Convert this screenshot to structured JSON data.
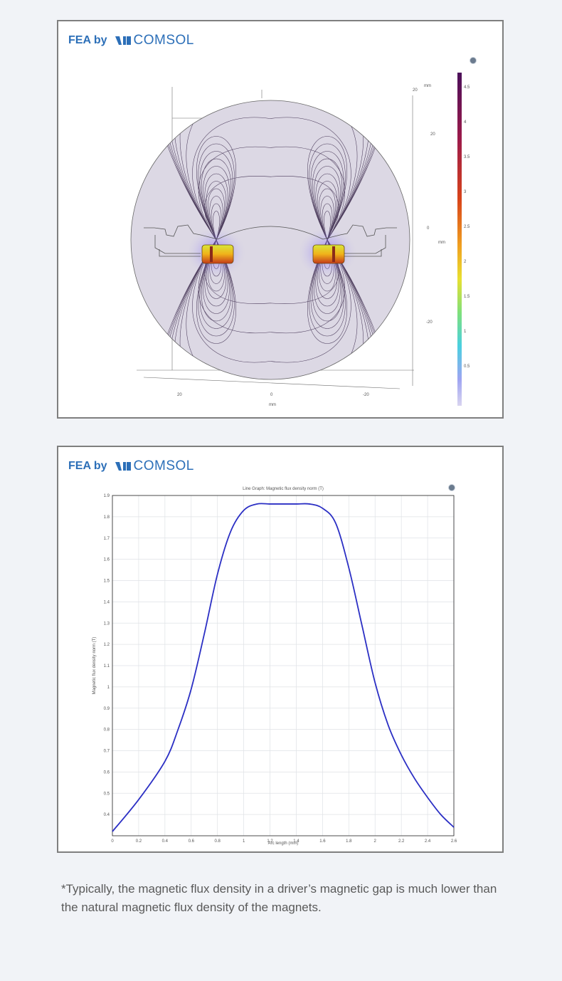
{
  "brand": {
    "prefix": "FEA by",
    "name": "COMSOL",
    "color": "#2c6fb8"
  },
  "plot1": {
    "colorbar_ticks": [
      "4.5",
      "4",
      "3.5",
      "3",
      "2.5",
      "2",
      "1.5",
      "1",
      "0.5"
    ],
    "x_ticks": [
      "20",
      "0",
      "-20"
    ],
    "x_unit": "mm",
    "z_ticks": [
      "20",
      "0",
      "-20"
    ],
    "z_unit": "mm",
    "axis_labels": {
      "triad_top": "mm",
      "triad_20": "20"
    }
  },
  "plot2": {
    "title": "Line Graph: Magnetic flux density norm (T)",
    "xlabel": "Arc length (mm)",
    "ylabel": "Magnetic flux density norm (T)"
  },
  "chart_data": {
    "type": "line",
    "title": "",
    "xlabel": "Arc length (mm)",
    "ylabel": "Magnetic flux density norm (T)",
    "xlim": [
      0,
      2.6
    ],
    "ylim": [
      0.3,
      1.9
    ],
    "x_ticks": [
      0,
      0.2,
      0.4,
      0.6,
      0.8,
      1,
      1.2,
      1.4,
      1.6,
      1.8,
      2,
      2.2,
      2.4,
      2.6
    ],
    "y_ticks": [
      0.4,
      0.5,
      0.6,
      0.7,
      0.8,
      0.9,
      1,
      1.1,
      1.2,
      1.3,
      1.4,
      1.5,
      1.6,
      1.7,
      1.8,
      1.9
    ],
    "grid": true,
    "series": [
      {
        "color": "#2b2fc4",
        "x": [
          0,
          0.2,
          0.4,
          0.5,
          0.6,
          0.7,
          0.8,
          0.9,
          1.0,
          1.1,
          1.2,
          1.3,
          1.4,
          1.5,
          1.6,
          1.7,
          1.8,
          1.9,
          2.0,
          2.1,
          2.2,
          2.3,
          2.4,
          2.5,
          2.6
        ],
        "y": [
          0.32,
          0.47,
          0.65,
          0.8,
          0.99,
          1.25,
          1.53,
          1.73,
          1.83,
          1.86,
          1.86,
          1.86,
          1.86,
          1.86,
          1.84,
          1.77,
          1.56,
          1.29,
          1.02,
          0.82,
          0.68,
          0.57,
          0.48,
          0.4,
          0.34
        ]
      }
    ]
  },
  "footnote": "*Typically, the magnetic flux density in a driver’s magnetic gap is much lower than the natural magnetic flux density of the magnets."
}
